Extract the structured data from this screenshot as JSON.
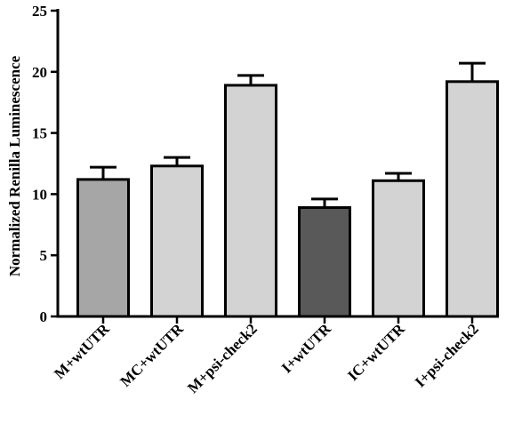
{
  "chart_data": {
    "type": "bar",
    "title": "",
    "xlabel": "",
    "ylabel": "Normalized Renilla Luminescence",
    "ylim": [
      0,
      25
    ],
    "yticks": [
      0,
      5,
      10,
      15,
      20,
      25
    ],
    "grid": false,
    "categories": [
      "M+wtUTR",
      "MC+wtUTR",
      "M+psi-check2",
      "I+wtUTR",
      "IC+wtUTR",
      "I+psi-check2"
    ],
    "values": [
      11.2,
      12.3,
      18.9,
      8.9,
      11.1,
      19.2
    ],
    "errors": [
      1.0,
      0.7,
      0.8,
      0.7,
      0.6,
      1.5
    ],
    "colors": [
      "#a6a6a6",
      "#d3d3d3",
      "#d3d3d3",
      "#595959",
      "#d3d3d3",
      "#d3d3d3"
    ]
  }
}
